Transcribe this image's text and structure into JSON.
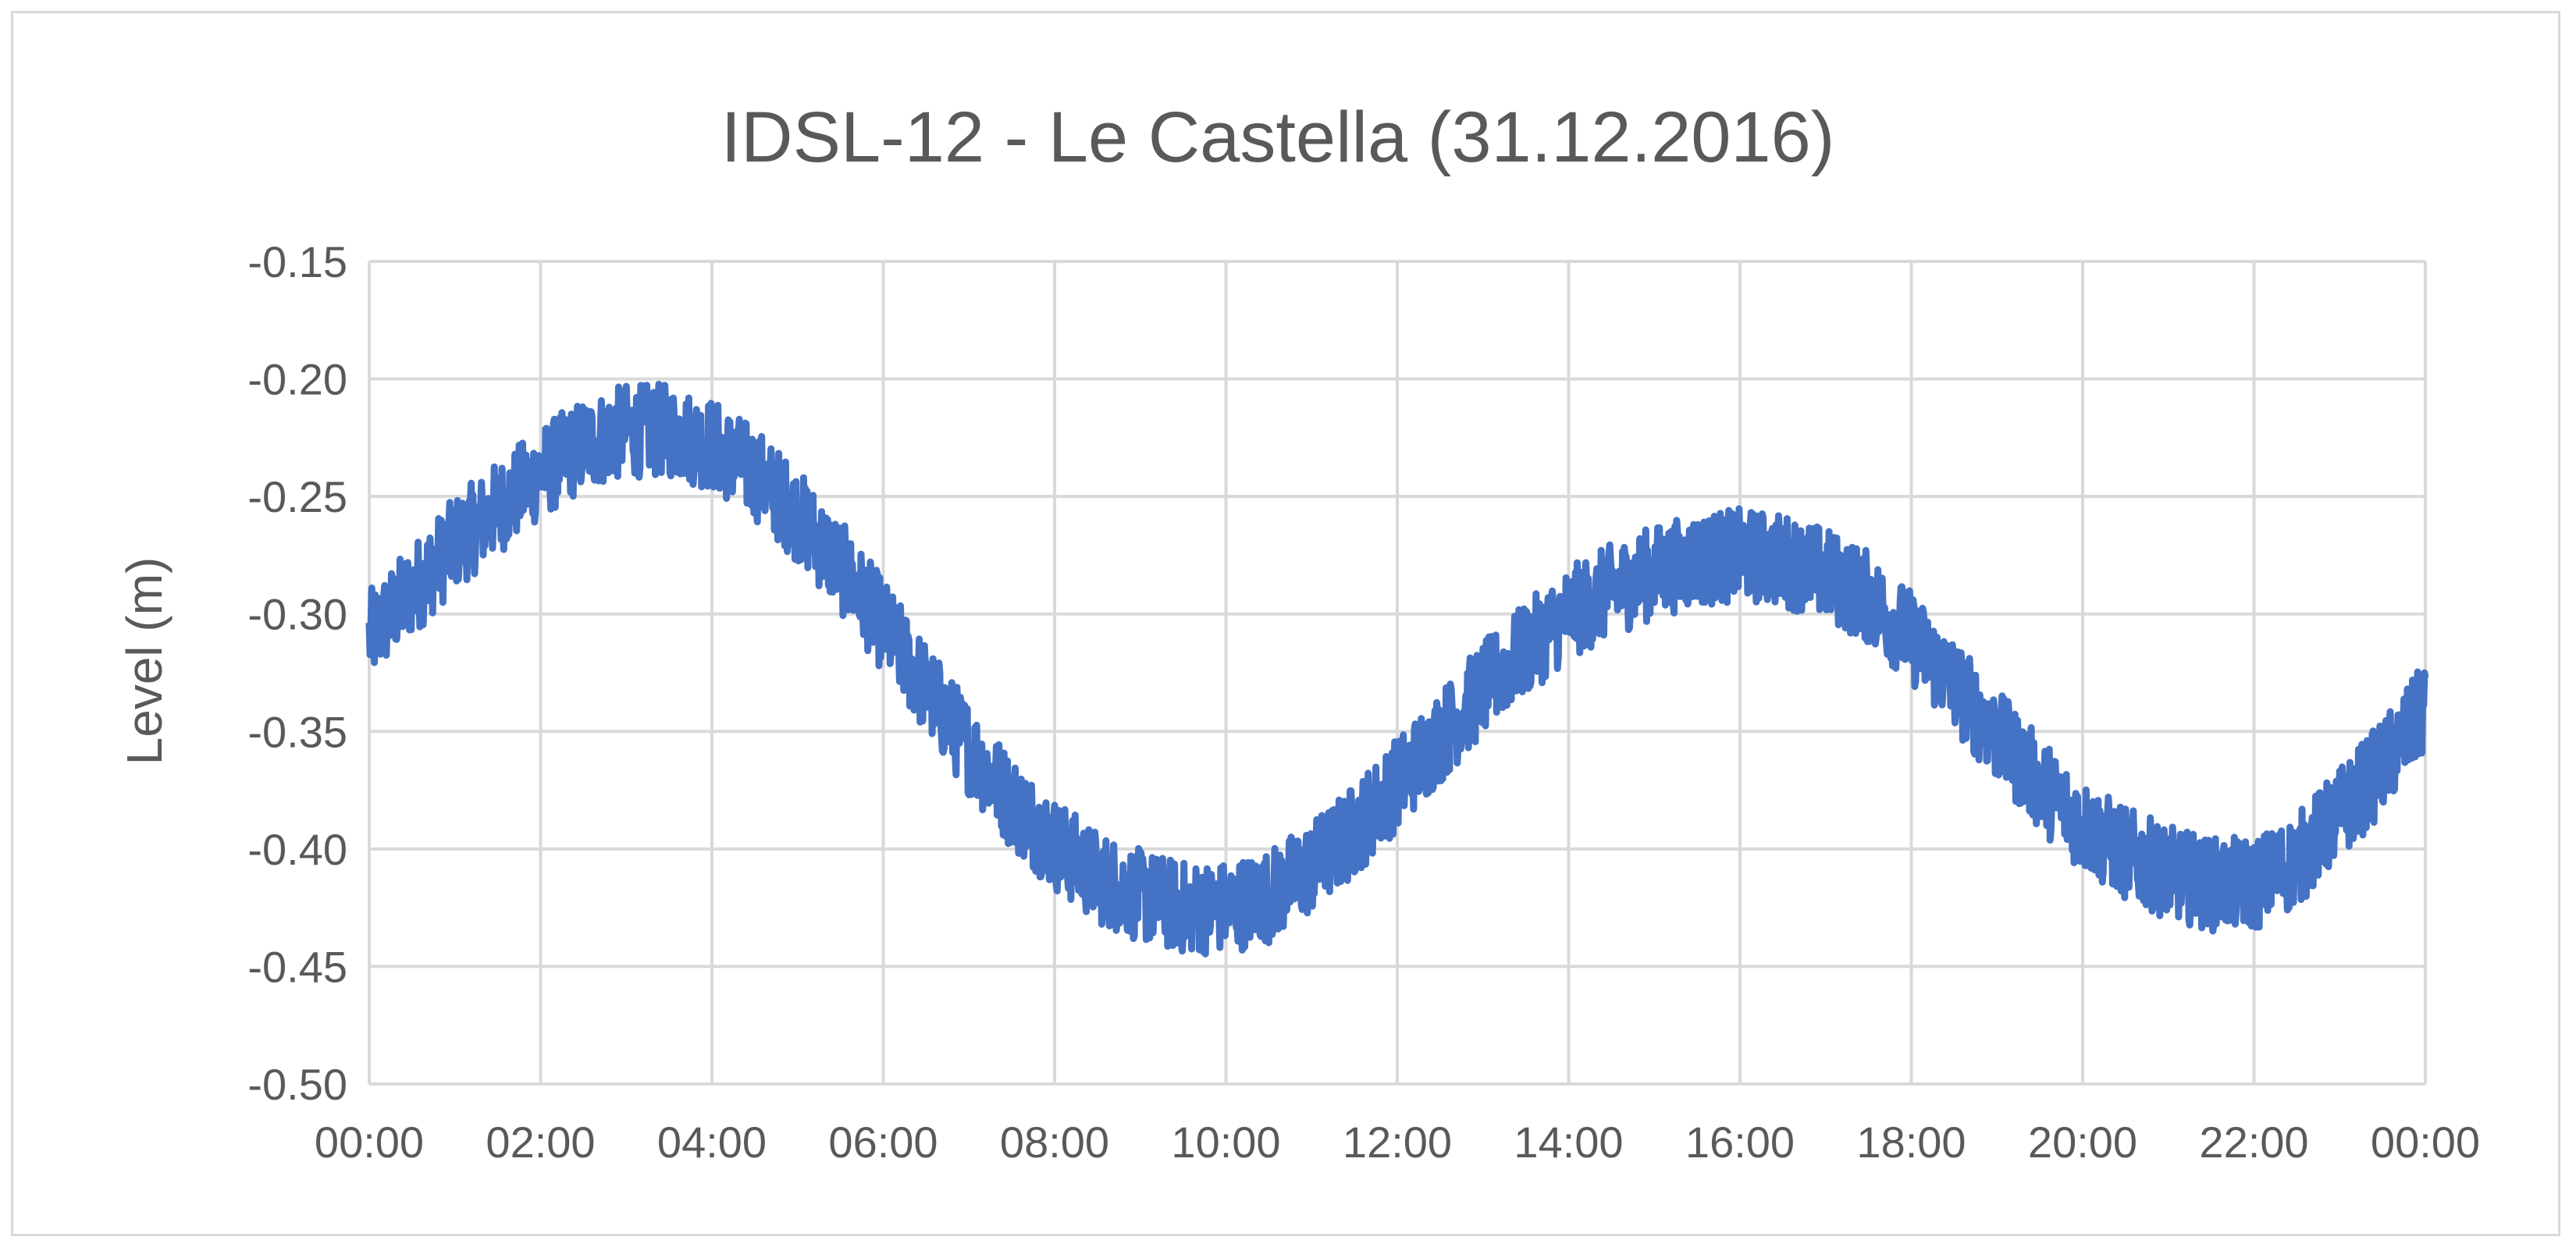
{
  "chart_data": {
    "type": "line",
    "title": "IDSL-12 - Le Castella (31.12.2016)",
    "xlabel": "",
    "ylabel": "Level (m)",
    "x_tick_labels": [
      "00:00",
      "02:00",
      "04:00",
      "06:00",
      "08:00",
      "10:00",
      "12:00",
      "14:00",
      "16:00",
      "18:00",
      "20:00",
      "22:00",
      "00:00"
    ],
    "y_tick_labels": [
      "-0.50",
      "-0.45",
      "-0.40",
      "-0.35",
      "-0.30",
      "-0.25",
      "-0.20",
      "-0.15"
    ],
    "xlim_hours": [
      0,
      24
    ],
    "ylim": [
      -0.5,
      -0.15
    ],
    "grid": true,
    "legend": "none",
    "series_color": "#4472C4",
    "series": [
      {
        "time_hours": [
          0,
          0.5,
          1,
          1.5,
          2,
          2.5,
          3,
          3.5,
          4,
          4.5,
          5,
          5.5,
          6,
          6.5,
          7,
          7.5,
          8,
          8.5,
          9,
          9.5,
          10,
          10.5,
          11,
          11.5,
          12,
          12.5,
          13,
          13.5,
          14,
          14.5,
          15,
          15.5,
          16,
          16.5,
          17,
          17.5,
          18,
          18.5,
          19,
          19.5,
          20,
          20.5,
          21,
          21.5,
          22,
          22.5,
          23,
          23.5,
          24
        ],
        "values": [
          -0.31,
          -0.29,
          -0.27,
          -0.255,
          -0.24,
          -0.228,
          -0.222,
          -0.222,
          -0.228,
          -0.24,
          -0.258,
          -0.28,
          -0.305,
          -0.332,
          -0.357,
          -0.38,
          -0.398,
          -0.412,
          -0.42,
          -0.425,
          -0.425,
          -0.42,
          -0.408,
          -0.392,
          -0.372,
          -0.352,
          -0.332,
          -0.315,
          -0.3,
          -0.29,
          -0.282,
          -0.277,
          -0.275,
          -0.277,
          -0.283,
          -0.293,
          -0.31,
          -0.33,
          -0.352,
          -0.372,
          -0.39,
          -0.402,
          -0.41,
          -0.415,
          -0.415,
          -0.405,
          -0.385,
          -0.365,
          -0.34
        ],
        "noise_amplitude": 0.02
      }
    ]
  }
}
